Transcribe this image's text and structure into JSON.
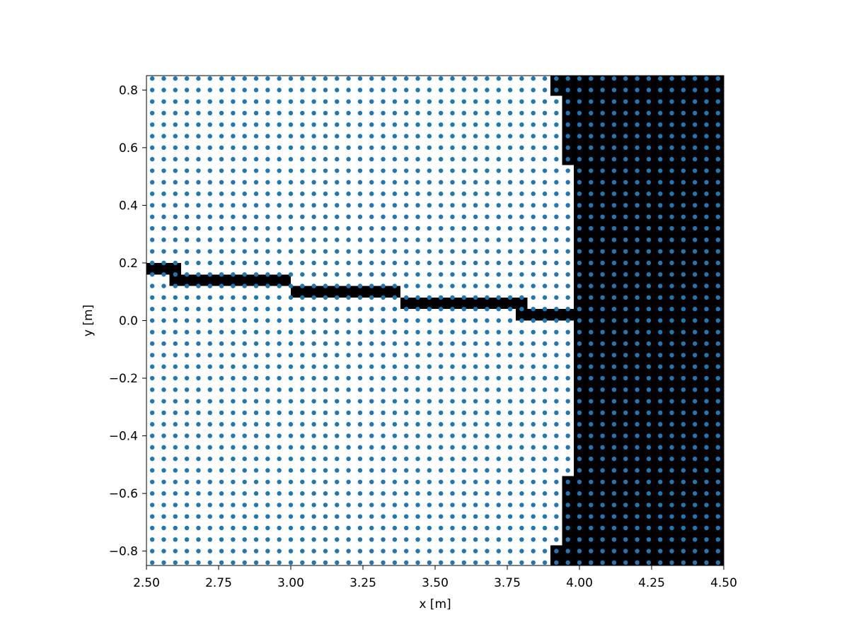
{
  "chart_data": {
    "type": "scatter",
    "title": "",
    "xlabel": "x [m]",
    "ylabel": "y [m]",
    "xlim": [
      2.5,
      4.5
    ],
    "ylim": [
      -0.85,
      0.85
    ],
    "xticks": [
      "2.50",
      "2.75",
      "3.00",
      "3.25",
      "3.50",
      "3.75",
      "4.00",
      "4.25",
      "4.50"
    ],
    "yticks": [
      "−0.8",
      "−0.6",
      "−0.4",
      "−0.2",
      "0.0",
      "0.2",
      "0.4",
      "0.6",
      "0.8"
    ],
    "grid": false,
    "legend": "none",
    "point_color": "#1f77b4",
    "background_color": "#000000",
    "points": {
      "x_start": 2.52,
      "x_step": 0.04,
      "x_count": 50,
      "y_start": -0.84,
      "y_step": 0.04,
      "y_count": 43
    },
    "masked_region": {
      "fill": "#ffffff",
      "description": "light cells form a left domain; black background shows the boundary",
      "cells_x_max_by_y": [
        {
          "y_min": -0.85,
          "y_max": -0.78,
          "x_max": 3.9
        },
        {
          "y_min": -0.78,
          "y_max": -0.54,
          "x_max": 3.94
        },
        {
          "y_min": -0.54,
          "y_max": 0.0,
          "x_max": 3.98
        }
      ],
      "upper_region": [
        {
          "y_min": 0.04,
          "y_max": 0.06,
          "x_min": 3.82,
          "x_max": 3.98
        },
        {
          "y_min": 0.06,
          "y_max": 0.08,
          "x_min": 3.82,
          "x_max": 3.98
        },
        {
          "y_min": 0.08,
          "y_max": 0.12,
          "x_min": 3.38,
          "x_max": 3.98
        },
        {
          "y_min": 0.12,
          "y_max": 0.16,
          "x_min": 3.0,
          "x_max": 3.98
        },
        {
          "y_min": 0.16,
          "y_max": 0.2,
          "x_min": 2.62,
          "x_max": 3.98
        },
        {
          "y_min": 0.2,
          "y_max": 0.54,
          "x_min": 2.5,
          "x_max": 3.98
        },
        {
          "y_min": 0.54,
          "y_max": 0.78,
          "x_min": 2.5,
          "x_max": 3.94
        },
        {
          "y_min": 0.78,
          "y_max": 0.85,
          "x_min": 2.5,
          "x_max": 3.9
        }
      ],
      "lower_region": [
        {
          "y_min": -0.85,
          "y_max": -0.78,
          "x_min": 2.5,
          "x_max": 3.9
        },
        {
          "y_min": -0.78,
          "y_max": -0.54,
          "x_min": 2.5,
          "x_max": 3.94
        },
        {
          "y_min": -0.54,
          "y_max": 0.0,
          "x_min": 2.5,
          "x_max": 3.98
        },
        {
          "y_min": 0.0,
          "y_max": 0.04,
          "x_min": 2.5,
          "x_max": 3.78
        },
        {
          "y_min": 0.04,
          "y_max": 0.08,
          "x_min": 2.5,
          "x_max": 3.38
        },
        {
          "y_min": 0.08,
          "y_max": 0.12,
          "x_min": 2.5,
          "x_max": 3.0
        },
        {
          "y_min": 0.12,
          "y_max": 0.16,
          "x_min": 2.5,
          "x_max": 2.58
        }
      ]
    }
  }
}
